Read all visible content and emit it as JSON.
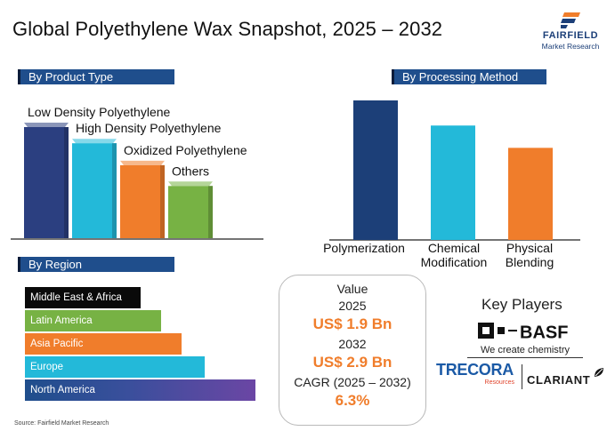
{
  "header": {
    "title": "Global Polyethylene Wax Snapshot, 2025 – 2032",
    "logo_name": "FAIRFIELD",
    "logo_sub": "Market Research"
  },
  "sections": {
    "product_type": "By Product Type",
    "processing_method": "By Processing Method",
    "region": "By Region"
  },
  "chart_data": [
    {
      "type": "bar",
      "title": "By Product Type",
      "categories": [
        "Low Density Polyethylene",
        "High Density Polyethylene",
        "Oxidized Polyethylene",
        "Others"
      ],
      "values": [
        100,
        86,
        67,
        49
      ],
      "colors": [
        "#2b3f80",
        "#23b9d9",
        "#f07d2b",
        "#77b244"
      ],
      "ylim": [
        0,
        100
      ]
    },
    {
      "type": "bar",
      "title": "By Processing Method",
      "categories": [
        "Polymerization",
        "Chemical Modification",
        "Physical Blending"
      ],
      "values": [
        100,
        82,
        66
      ],
      "colors": [
        "#1c3f78",
        "#23b9d9",
        "#f07d2b"
      ],
      "ylim": [
        0,
        100
      ]
    },
    {
      "type": "bar",
      "orientation": "horizontal",
      "title": "By Region",
      "categories": [
        "Middle East & Africa",
        "Latin America",
        "Asia Pacific",
        "Europe",
        "North America"
      ],
      "values": [
        50,
        59,
        68,
        78,
        100
      ],
      "colors": [
        "#0a0a0a",
        "#77b244",
        "#f07d2b",
        "#23b9d9",
        "#6b46a4"
      ],
      "ylim": [
        0,
        100
      ]
    }
  ],
  "summary": {
    "value_label": "Value",
    "year1": "2025",
    "value1": "US$ 1.9 Bn",
    "year2": "2032",
    "value2": "US$ 2.9 Bn",
    "cagr_label": "CAGR (2025 – 2032)",
    "cagr_value": "6.3%"
  },
  "key_players": {
    "title": "Key Players",
    "basf_name": "BASF",
    "basf_tagline": "We create chemistry",
    "trecora_name": "TRECORA",
    "trecora_sub": "Resources",
    "clariant_name": "CLARIANT"
  },
  "source": "Source: Fairfield Market Research"
}
